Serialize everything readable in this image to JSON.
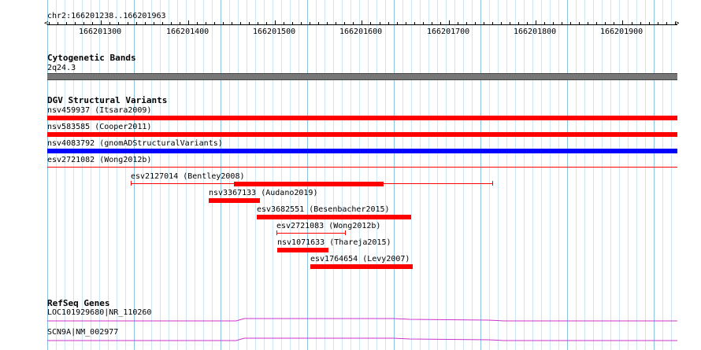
{
  "ruler": {
    "location": "chr2:166201238..166201963",
    "ticks": [
      "166201300",
      "166201400",
      "166201500",
      "166201600",
      "166201700",
      "166201800",
      "166201900"
    ]
  },
  "cytoband_track": {
    "title": "Cytogenetic Bands",
    "band_label": "2q24.3"
  },
  "dgv_track": {
    "title": "DGV Structural Variants",
    "full_width_items": [
      {
        "label": "nsv459937 (Itsara2009)",
        "color": "#ff0000"
      },
      {
        "label": "nsv583585 (Cooper2011)",
        "color": "#ff0000"
      },
      {
        "label": "nsv4083792 (gnomADStructuralVariants)",
        "color": "#0000ff"
      },
      {
        "label": "esv2721082 (Wong2012b)",
        "color": "#ff0000"
      }
    ],
    "items": [
      {
        "label": "esv2127014 (Bentley2008)"
      },
      {
        "label": "nsv3367133 (Audano2019)"
      },
      {
        "label": "esv3682551 (Besenbacher2015)"
      },
      {
        "label": "esv2721083 (Wong2012b)"
      },
      {
        "label": "nsv1071633 (Thareja2015)"
      },
      {
        "label": "esv1764654 (Levy2007)"
      }
    ]
  },
  "refseq_track": {
    "title": "RefSeq Genes",
    "genes": [
      {
        "label": "LOC101929680|NR_110260",
        "color": "#cc33cc"
      },
      {
        "label": "SCN9A|NM_002977",
        "color": "#cc33cc"
      }
    ]
  }
}
